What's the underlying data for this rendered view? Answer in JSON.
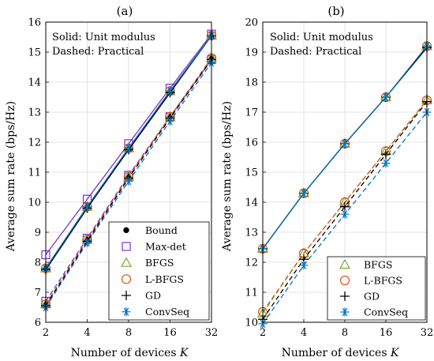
{
  "colors": {
    "bound": "#000000",
    "maxdet": "#7e2fd8",
    "bfgs": "#77ac30",
    "lbfgs": "#d95319",
    "gd": "#000000",
    "convseq": "#0072bd"
  },
  "chart_data": [
    {
      "type": "line",
      "title": "(a)",
      "xlabel": "Number of devices K",
      "ylabel": "Average sum rate (bps/Hz)",
      "x_scale": "log2",
      "categories": [
        "2",
        "4",
        "8",
        "16",
        "32"
      ],
      "x": [
        2,
        4,
        8,
        16,
        32
      ],
      "ylim": [
        6,
        16
      ],
      "yticks": [
        6,
        7,
        8,
        9,
        10,
        11,
        12,
        13,
        14,
        15,
        16
      ],
      "grid": true,
      "annotations": [
        "Solid: Unit modulus",
        "Dashed: Practical"
      ],
      "legend_position": "bottom-right",
      "legend": [
        {
          "label": "Bound",
          "marker": "dot",
          "color": "#000000"
        },
        {
          "label": "Max-det",
          "marker": "square",
          "color": "#7e2fd8"
        },
        {
          "label": "BFGS",
          "marker": "triangle",
          "color": "#77ac30"
        },
        {
          "label": "L-BFGS",
          "marker": "circle",
          "color": "#d95319"
        },
        {
          "label": "GD",
          "marker": "plus",
          "color": "#000000"
        },
        {
          "label": "ConvSeq",
          "marker": "asterisk",
          "color": "#0072bd"
        }
      ],
      "series": [
        {
          "name": "Bound",
          "style": "solid",
          "marker": "dot",
          "color": "#000000",
          "values": [
            7.8,
            9.85,
            11.75,
            13.65,
            15.55
          ]
        },
        {
          "name": "Max-det",
          "style": "solid",
          "marker": "square",
          "color": "#7e2fd8",
          "values": [
            8.25,
            10.1,
            11.95,
            13.8,
            15.6
          ]
        },
        {
          "name": "BFGS",
          "style": "solid",
          "marker": "triangle",
          "color": "#77ac30",
          "values": [
            7.8,
            9.85,
            11.8,
            13.7,
            15.55
          ]
        },
        {
          "name": "L-BFGS",
          "style": "solid",
          "marker": "circle",
          "color": "#d95319",
          "values": [
            7.8,
            9.85,
            11.8,
            13.7,
            15.55
          ]
        },
        {
          "name": "GD",
          "style": "solid",
          "marker": "plus",
          "color": "#000000",
          "values": [
            7.75,
            9.8,
            11.75,
            13.65,
            15.55
          ]
        },
        {
          "name": "ConvSeq",
          "style": "solid",
          "marker": "asterisk",
          "color": "#0072bd",
          "values": [
            7.8,
            9.85,
            11.8,
            13.7,
            15.55
          ]
        },
        {
          "name": "Bound",
          "style": "dashed",
          "marker": "dot",
          "color": "#000000",
          "values": [
            6.6,
            8.75,
            10.85,
            12.85,
            14.8
          ]
        },
        {
          "name": "Max-det",
          "style": "dashed",
          "marker": "square",
          "color": "#7e2fd8",
          "values": [
            6.7,
            8.8,
            10.9,
            12.85,
            14.75
          ]
        },
        {
          "name": "BFGS",
          "style": "dashed",
          "marker": "triangle",
          "color": "#77ac30",
          "values": [
            6.6,
            8.75,
            10.85,
            12.85,
            14.8
          ]
        },
        {
          "name": "L-BFGS",
          "style": "dashed",
          "marker": "circle",
          "color": "#d95319",
          "values": [
            6.6,
            8.75,
            10.85,
            12.85,
            14.8
          ]
        },
        {
          "name": "GD",
          "style": "dashed",
          "marker": "plus",
          "color": "#000000",
          "values": [
            6.55,
            8.7,
            10.8,
            12.8,
            14.75
          ]
        },
        {
          "name": "ConvSeq",
          "style": "dashed",
          "marker": "asterisk",
          "color": "#0072bd",
          "values": [
            6.5,
            8.65,
            10.7,
            12.7,
            14.65
          ]
        }
      ]
    },
    {
      "type": "line",
      "title": "(b)",
      "xlabel": "Number of devices K",
      "ylabel": "Average sum rate (bps/Hz)",
      "x_scale": "log2",
      "categories": [
        "2",
        "4",
        "8",
        "16",
        "32"
      ],
      "x": [
        2,
        4,
        8,
        16,
        32
      ],
      "ylim": [
        10,
        20
      ],
      "yticks": [
        10,
        11,
        12,
        13,
        14,
        15,
        16,
        17,
        18,
        19,
        20
      ],
      "grid": true,
      "annotations": [
        "Solid: Unit modulus",
        "Dashed: Practical"
      ],
      "legend_position": "bottom-right",
      "legend": [
        {
          "label": "BFGS",
          "marker": "triangle",
          "color": "#77ac30"
        },
        {
          "label": "L-BFGS",
          "marker": "circle",
          "color": "#d95319"
        },
        {
          "label": "GD",
          "marker": "plus",
          "color": "#000000"
        },
        {
          "label": "ConvSeq",
          "marker": "asterisk",
          "color": "#0072bd"
        }
      ],
      "series": [
        {
          "name": "BFGS",
          "style": "solid",
          "marker": "triangle",
          "color": "#77ac30",
          "values": [
            12.45,
            14.3,
            15.95,
            17.5,
            19.2
          ]
        },
        {
          "name": "L-BFGS",
          "style": "solid",
          "marker": "circle",
          "color": "#d95319",
          "values": [
            12.45,
            14.3,
            15.95,
            17.5,
            19.2
          ]
        },
        {
          "name": "GD",
          "style": "solid",
          "marker": "plus",
          "color": "#000000",
          "values": [
            12.45,
            14.3,
            15.95,
            17.5,
            19.15
          ]
        },
        {
          "name": "ConvSeq",
          "style": "solid",
          "marker": "asterisk",
          "color": "#0072bd",
          "values": [
            12.45,
            14.3,
            15.95,
            17.5,
            19.2
          ]
        },
        {
          "name": "BFGS",
          "style": "dashed",
          "marker": "triangle",
          "color": "#77ac30",
          "values": [
            10.3,
            12.3,
            14.0,
            15.7,
            17.4
          ]
        },
        {
          "name": "L-BFGS",
          "style": "dashed",
          "marker": "circle",
          "color": "#d95319",
          "values": [
            10.35,
            12.3,
            14.0,
            15.7,
            17.4
          ]
        },
        {
          "name": "GD",
          "style": "dashed",
          "marker": "plus",
          "color": "#000000",
          "values": [
            10.1,
            12.1,
            13.85,
            15.6,
            17.35
          ]
        },
        {
          "name": "ConvSeq",
          "style": "dashed",
          "marker": "asterisk",
          "color": "#0072bd",
          "values": [
            9.95,
            11.9,
            13.6,
            15.3,
            17.0
          ]
        }
      ]
    }
  ]
}
